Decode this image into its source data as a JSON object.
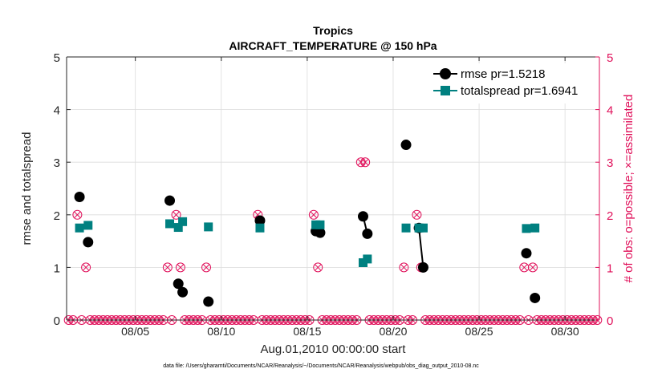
{
  "chart_data": {
    "type": "line",
    "title_line1": "Tropics",
    "title_line2": "AIRCRAFT_TEMPERATURE @ 150 hPa",
    "xlabel": "Aug.01,2010 00:00:00 start",
    "ylabel_left": "rmse and totalspread",
    "ylabel_right": "# of obs: o=possible; ×=assimilated",
    "footer": "data file: /Users/gharamti/Documents/NCAR/Reanalysis/~/Documents/NCAR/Reanalysis/webpub/obs_diag_output_2010-08.nc",
    "xlim": [
      1,
      32
    ],
    "ylim_left": [
      0,
      5
    ],
    "ylim_right": [
      0,
      5
    ],
    "x_ticks": [
      5,
      10,
      15,
      20,
      25,
      30
    ],
    "x_tick_labels": [
      "08/05",
      "08/10",
      "08/15",
      "08/20",
      "08/25",
      "08/30"
    ],
    "y_ticks_left": [
      0,
      1,
      2,
      3,
      4,
      5
    ],
    "y_tick_labels_left": [
      "0",
      "1",
      "2",
      "3",
      "4",
      "5"
    ],
    "y_ticks_right": [
      0,
      1,
      2,
      3,
      4,
      5
    ],
    "y_tick_labels_right": [
      "0",
      "1",
      "2",
      "3",
      "4",
      "5"
    ],
    "colors": {
      "rmse": "#000000",
      "totalspread": "#008080",
      "obs": "#e0105a",
      "grid": "#dcdcdc",
      "axis": "#262626"
    },
    "legend": [
      {
        "name": "rmse",
        "label": "rmse pr=1.5218"
      },
      {
        "name": "totalspread",
        "label": "totalspread pr=1.6941"
      }
    ],
    "series": [
      {
        "name": "rmse",
        "segments": [
          [
            [
              1.75,
              2.34
            ]
          ],
          [
            [
              2.25,
              1.48
            ]
          ],
          [
            [
              7.0,
              2.27
            ]
          ],
          [
            [
              7.5,
              0.69
            ]
          ],
          [
            [
              7.75,
              0.53
            ]
          ],
          [
            [
              9.25,
              0.35
            ]
          ],
          [
            [
              12.25,
              1.89
            ]
          ],
          [
            [
              15.5,
              1.69
            ]
          ],
          [
            [
              15.75,
              1.66
            ]
          ],
          [
            [
              18.25,
              1.97
            ],
            [
              18.5,
              1.64
            ]
          ],
          [
            [
              20.75,
              3.33
            ]
          ],
          [
            [
              21.5,
              1.75
            ],
            [
              21.75,
              1.0
            ]
          ],
          [
            [
              27.75,
              1.27
            ]
          ],
          [
            [
              28.25,
              0.42
            ]
          ]
        ]
      },
      {
        "name": "totalspread",
        "segments": [
          [
            [
              1.75,
              1.75
            ]
          ],
          [
            [
              2.25,
              1.8
            ]
          ],
          [
            [
              7.0,
              1.83
            ]
          ],
          [
            [
              7.5,
              1.76
            ]
          ],
          [
            [
              7.75,
              1.87
            ]
          ],
          [
            [
              9.25,
              1.77
            ]
          ],
          [
            [
              12.25,
              1.75
            ]
          ],
          [
            [
              15.5,
              1.81
            ]
          ],
          [
            [
              15.75,
              1.81
            ]
          ],
          [
            [
              18.25,
              1.09
            ],
            [
              18.5,
              1.16
            ]
          ],
          [
            [
              20.75,
              1.75
            ]
          ],
          [
            [
              21.5,
              1.75
            ],
            [
              21.75,
              1.75
            ]
          ],
          [
            [
              27.75,
              1.74
            ]
          ],
          [
            [
              28.25,
              1.75
            ]
          ]
        ]
      }
    ],
    "obs_counts": [
      {
        "x": 1.75,
        "possible": 2,
        "assimilated": 2
      },
      {
        "x": 2.25,
        "possible": 1,
        "assimilated": 1
      },
      {
        "x": 7.0,
        "possible": 1,
        "assimilated": 1
      },
      {
        "x": 7.5,
        "possible": 2,
        "assimilated": 2
      },
      {
        "x": 7.75,
        "possible": 1,
        "assimilated": 1
      },
      {
        "x": 9.25,
        "possible": 1,
        "assimilated": 1
      },
      {
        "x": 12.25,
        "possible": 2,
        "assimilated": 2
      },
      {
        "x": 15.5,
        "possible": 2,
        "assimilated": 2
      },
      {
        "x": 15.75,
        "possible": 1,
        "assimilated": 1
      },
      {
        "x": 18.25,
        "possible": 3,
        "assimilated": 3
      },
      {
        "x": 18.5,
        "possible": 3,
        "assimilated": 3
      },
      {
        "x": 20.75,
        "possible": 1,
        "assimilated": 1
      },
      {
        "x": 21.5,
        "possible": 2,
        "assimilated": 2
      },
      {
        "x": 21.75,
        "possible": 1,
        "assimilated": 1
      },
      {
        "x": 27.75,
        "possible": 1,
        "assimilated": 1
      },
      {
        "x": 28.25,
        "possible": 1,
        "assimilated": 1
      }
    ],
    "obs_time_step_days": 0.25
  }
}
